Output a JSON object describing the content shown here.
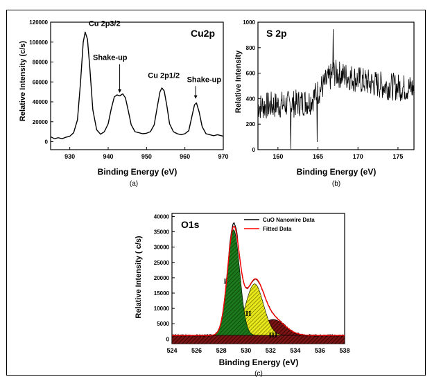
{
  "chart_data": [
    {
      "type": "line",
      "panel_label": "(a)",
      "title": "Cu2p",
      "xlabel": "Binding Energy (eV)",
      "ylabel": "Relative Intensity (c/s)",
      "xlim": [
        925,
        970
      ],
      "ylim": [
        -8000,
        120000
      ],
      "xticks": [
        930,
        940,
        950,
        960,
        970
      ],
      "yticks": [
        0,
        20000,
        40000,
        60000,
        80000,
        100000,
        120000
      ],
      "grid": false,
      "series": [
        {
          "color": "#000000",
          "x": [
            925,
            926,
            927,
            928,
            929,
            930,
            931,
            932,
            932.8,
            933.5,
            934,
            934.6,
            935.2,
            936,
            937,
            938,
            939,
            940,
            940.8,
            941.6,
            942.3,
            943,
            943.8,
            944.5,
            945.3,
            946,
            947,
            948,
            949,
            950,
            951,
            952,
            952.8,
            953.5,
            954,
            954.6,
            955.3,
            956,
            957,
            958,
            959,
            960,
            961,
            961.8,
            962.5,
            963,
            963.7,
            964.5,
            965.5,
            966.5,
            967.5,
            968.5,
            970
          ],
          "y": [
            5000,
            3000,
            4000,
            3000,
            4500,
            5500,
            9000,
            22000,
            60000,
            100000,
            110000,
            103000,
            75000,
            32000,
            12000,
            7500,
            10000,
            18000,
            33000,
            45000,
            47000,
            46000,
            48000,
            44000,
            30000,
            17000,
            10000,
            9000,
            8000,
            8500,
            10000,
            17000,
            35000,
            50000,
            54000,
            51000,
            36000,
            18000,
            10000,
            8000,
            7000,
            8000,
            11000,
            25000,
            37000,
            39000,
            30000,
            15000,
            8000,
            7000,
            6000,
            7000,
            5500
          ]
        }
      ],
      "annotations": [
        {
          "text": "Cu 2p3/2",
          "x": 934,
          "y": 112000,
          "arrow": false
        },
        {
          "text": "Shake-up",
          "x": 943,
          "y": 47000,
          "arrow": true,
          "text_x": 940.5,
          "text_y": 82000
        },
        {
          "text": "Cu 2p1/2",
          "x": 954.5,
          "y": 60000,
          "arrow": false
        },
        {
          "text": "Shake-up",
          "x": 962.8,
          "y": 41000,
          "arrow": true,
          "text_x": 965,
          "text_y": 60000
        }
      ]
    },
    {
      "type": "line",
      "panel_label": "(b)",
      "title": "S 2p",
      "xlabel": "Binding Energy (eV)",
      "ylabel": "Relative Intensity",
      "xlim": [
        157.5,
        177
      ],
      "ylim": [
        0,
        1000
      ],
      "xticks": [
        160,
        165,
        170,
        175
      ],
      "yticks": [
        0,
        200,
        400,
        600,
        800,
        1000
      ],
      "grid": false,
      "trend": {
        "x": [
          157.5,
          162,
          164,
          165.5,
          167,
          169,
          171,
          173,
          175,
          177
        ],
        "y": [
          340,
          360,
          380,
          490,
          600,
          570,
          530,
          505,
          490,
          480
        ]
      },
      "noise_amplitude": 110,
      "notable_points": [
        {
          "x": 161.6,
          "y": 5
        },
        {
          "x": 166.9,
          "y": 945
        },
        {
          "x": 164.9,
          "y": 60
        }
      ],
      "series": [
        {
          "color": "#000000"
        }
      ]
    },
    {
      "type": "area",
      "panel_label": "(c)",
      "title": "O1s",
      "xlabel": "Binding Energy (eV)",
      "ylabel": "Relative Intensity  ( c/s)",
      "xlim": [
        524,
        538
      ],
      "ylim": [
        -1500,
        41000
      ],
      "xticks": [
        524,
        526,
        528,
        530,
        532,
        534,
        536,
        538
      ],
      "yticks": [
        0,
        5000,
        10000,
        15000,
        20000,
        25000,
        30000,
        35000,
        40000
      ],
      "grid": false,
      "legend_position": "top-right",
      "baseline": 1200,
      "series": [
        {
          "name": "CuO Nanowire Data",
          "color": "#000000"
        },
        {
          "name": "Fitted Data",
          "color": "#ff0000"
        }
      ],
      "components": [
        {
          "label": "I",
          "center": 529.0,
          "sigma": 0.5,
          "height": 34500,
          "fill": "#1c7a1c",
          "label_x": 528.3,
          "label_y": 18000
        },
        {
          "label": "II",
          "center": 530.7,
          "sigma": 0.72,
          "height": 16800,
          "fill": "#e8e81a",
          "label_x": 530.2,
          "label_y": 7500
        },
        {
          "label": "III",
          "center": 532.2,
          "sigma": 0.95,
          "height": 5200,
          "fill": "#7a1414",
          "label_x": 532.2,
          "label_y": 500
        }
      ]
    }
  ]
}
